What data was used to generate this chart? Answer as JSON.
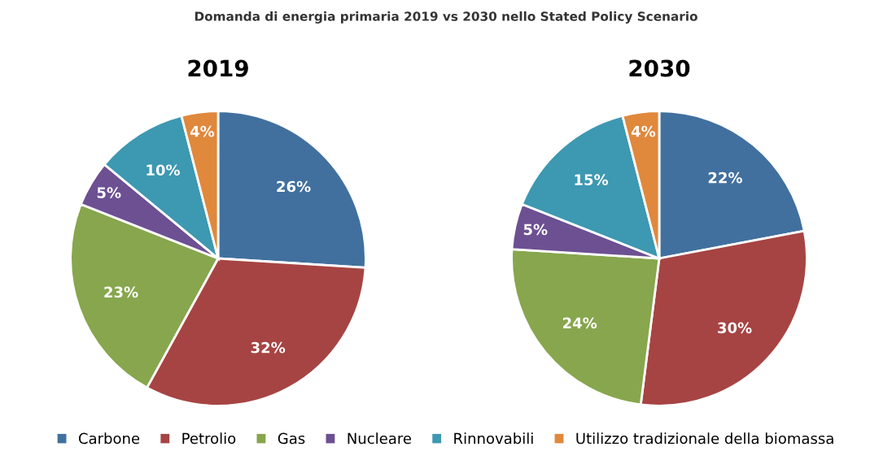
{
  "chart_data": [
    {
      "type": "pie",
      "title": "Domanda di energia primaria 2019 vs 2030 nello Stated Policy Scenario",
      "subtitle": "2019",
      "categories": [
        "Carbone",
        "Petrolio",
        "Gas",
        "Nucleare",
        "Rinnovabili",
        "Utilizzo tradizionale della biomassa"
      ],
      "values": [
        26,
        32,
        23,
        5,
        10,
        4
      ],
      "value_labels": [
        "26%",
        "32%",
        "23%",
        "5%",
        "10%",
        "4%"
      ],
      "colors": [
        "#41709f",
        "#a64443",
        "#87a64d",
        "#6c5092",
        "#3d98b1",
        "#e0883c"
      ],
      "legend": "bottom"
    },
    {
      "type": "pie",
      "subtitle": "2030",
      "values": [
        22,
        30,
        24,
        5,
        15,
        4
      ],
      "value_labels": [
        "22%",
        "30%",
        "24%",
        "5%",
        "15%",
        "4%"
      ],
      "colors": [
        "#41709f",
        "#a64443",
        "#87a64d",
        "#6c5092",
        "#3d98b1",
        "#e0883c"
      ]
    }
  ]
}
